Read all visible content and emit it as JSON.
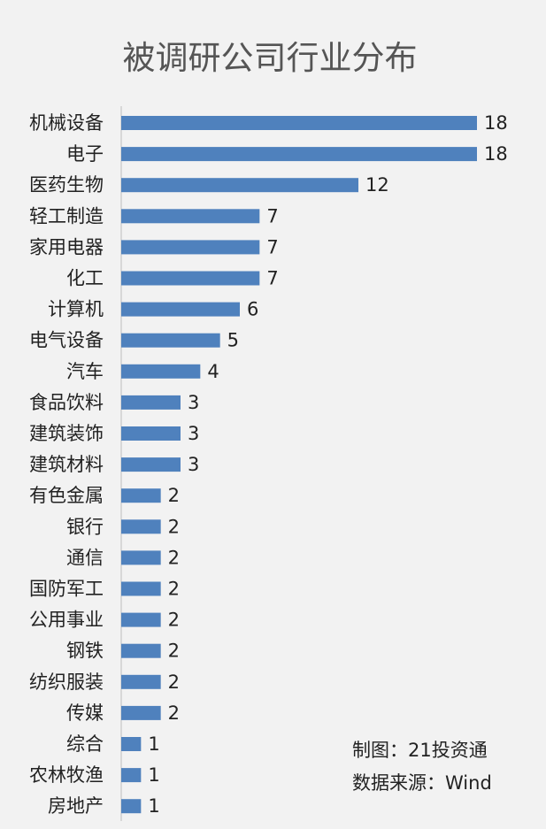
{
  "chart_data": {
    "type": "bar",
    "orientation": "horizontal",
    "title": "被调研公司行业分布",
    "xlabel": "",
    "ylabel": "",
    "grid": false,
    "legend": "none",
    "xlim": [
      0,
      18
    ],
    "categories": [
      "机械设备",
      "电子",
      "医药生物",
      "轻工制造",
      "家用电器",
      "化工",
      "计算机",
      "电气设备",
      "汽车",
      "食品饮料",
      "建筑装饰",
      "建筑材料",
      "有色金属",
      "银行",
      "通信",
      "国防军工",
      "公用事业",
      "钢铁",
      "纺织服装",
      "传媒",
      "综合",
      "农林牧渔",
      "房地产"
    ],
    "values": [
      18,
      18,
      12,
      7,
      7,
      7,
      6,
      5,
      4,
      3,
      3,
      3,
      2,
      2,
      2,
      2,
      2,
      2,
      2,
      2,
      1,
      1,
      1
    ],
    "bar_color": "#4f81bd"
  },
  "source": {
    "maker": "制图：21投资通",
    "data_source": "数据来源：Wind"
  }
}
